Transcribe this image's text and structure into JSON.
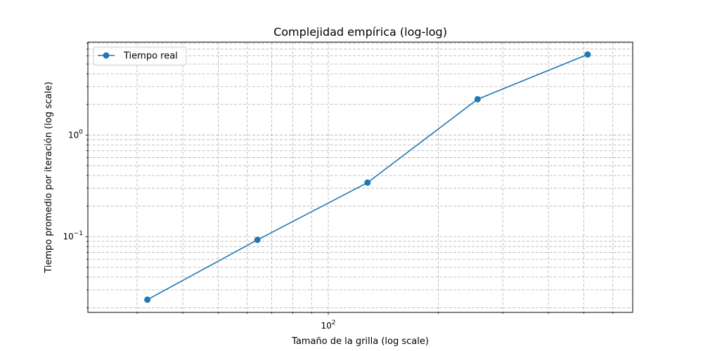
{
  "chart_data": {
    "type": "line",
    "title": "Complejidad empírica (log-log)",
    "xlabel": "Tamaño de la grilla (log scale)",
    "ylabel": "Tiempo promedio por iteración (log scale)",
    "xscale": "log",
    "yscale": "log",
    "xlim": [
      22,
      680
    ],
    "ylim": [
      0.018,
      8.2
    ],
    "grid": true,
    "legend_position": "top-left",
    "x_ticks": [
      {
        "value": 100,
        "base": "10",
        "exp": "2"
      }
    ],
    "y_ticks": [
      {
        "value": 0.1,
        "base": "10",
        "exp": "−1"
      },
      {
        "value": 1,
        "base": "10",
        "exp": "0"
      }
    ],
    "series": [
      {
        "name": "Tiempo real",
        "color": "#1f77b4",
        "marker": "circle",
        "x": [
          32,
          64,
          128,
          256,
          512
        ],
        "y": [
          0.024,
          0.093,
          0.34,
          2.25,
          6.2
        ]
      }
    ]
  }
}
